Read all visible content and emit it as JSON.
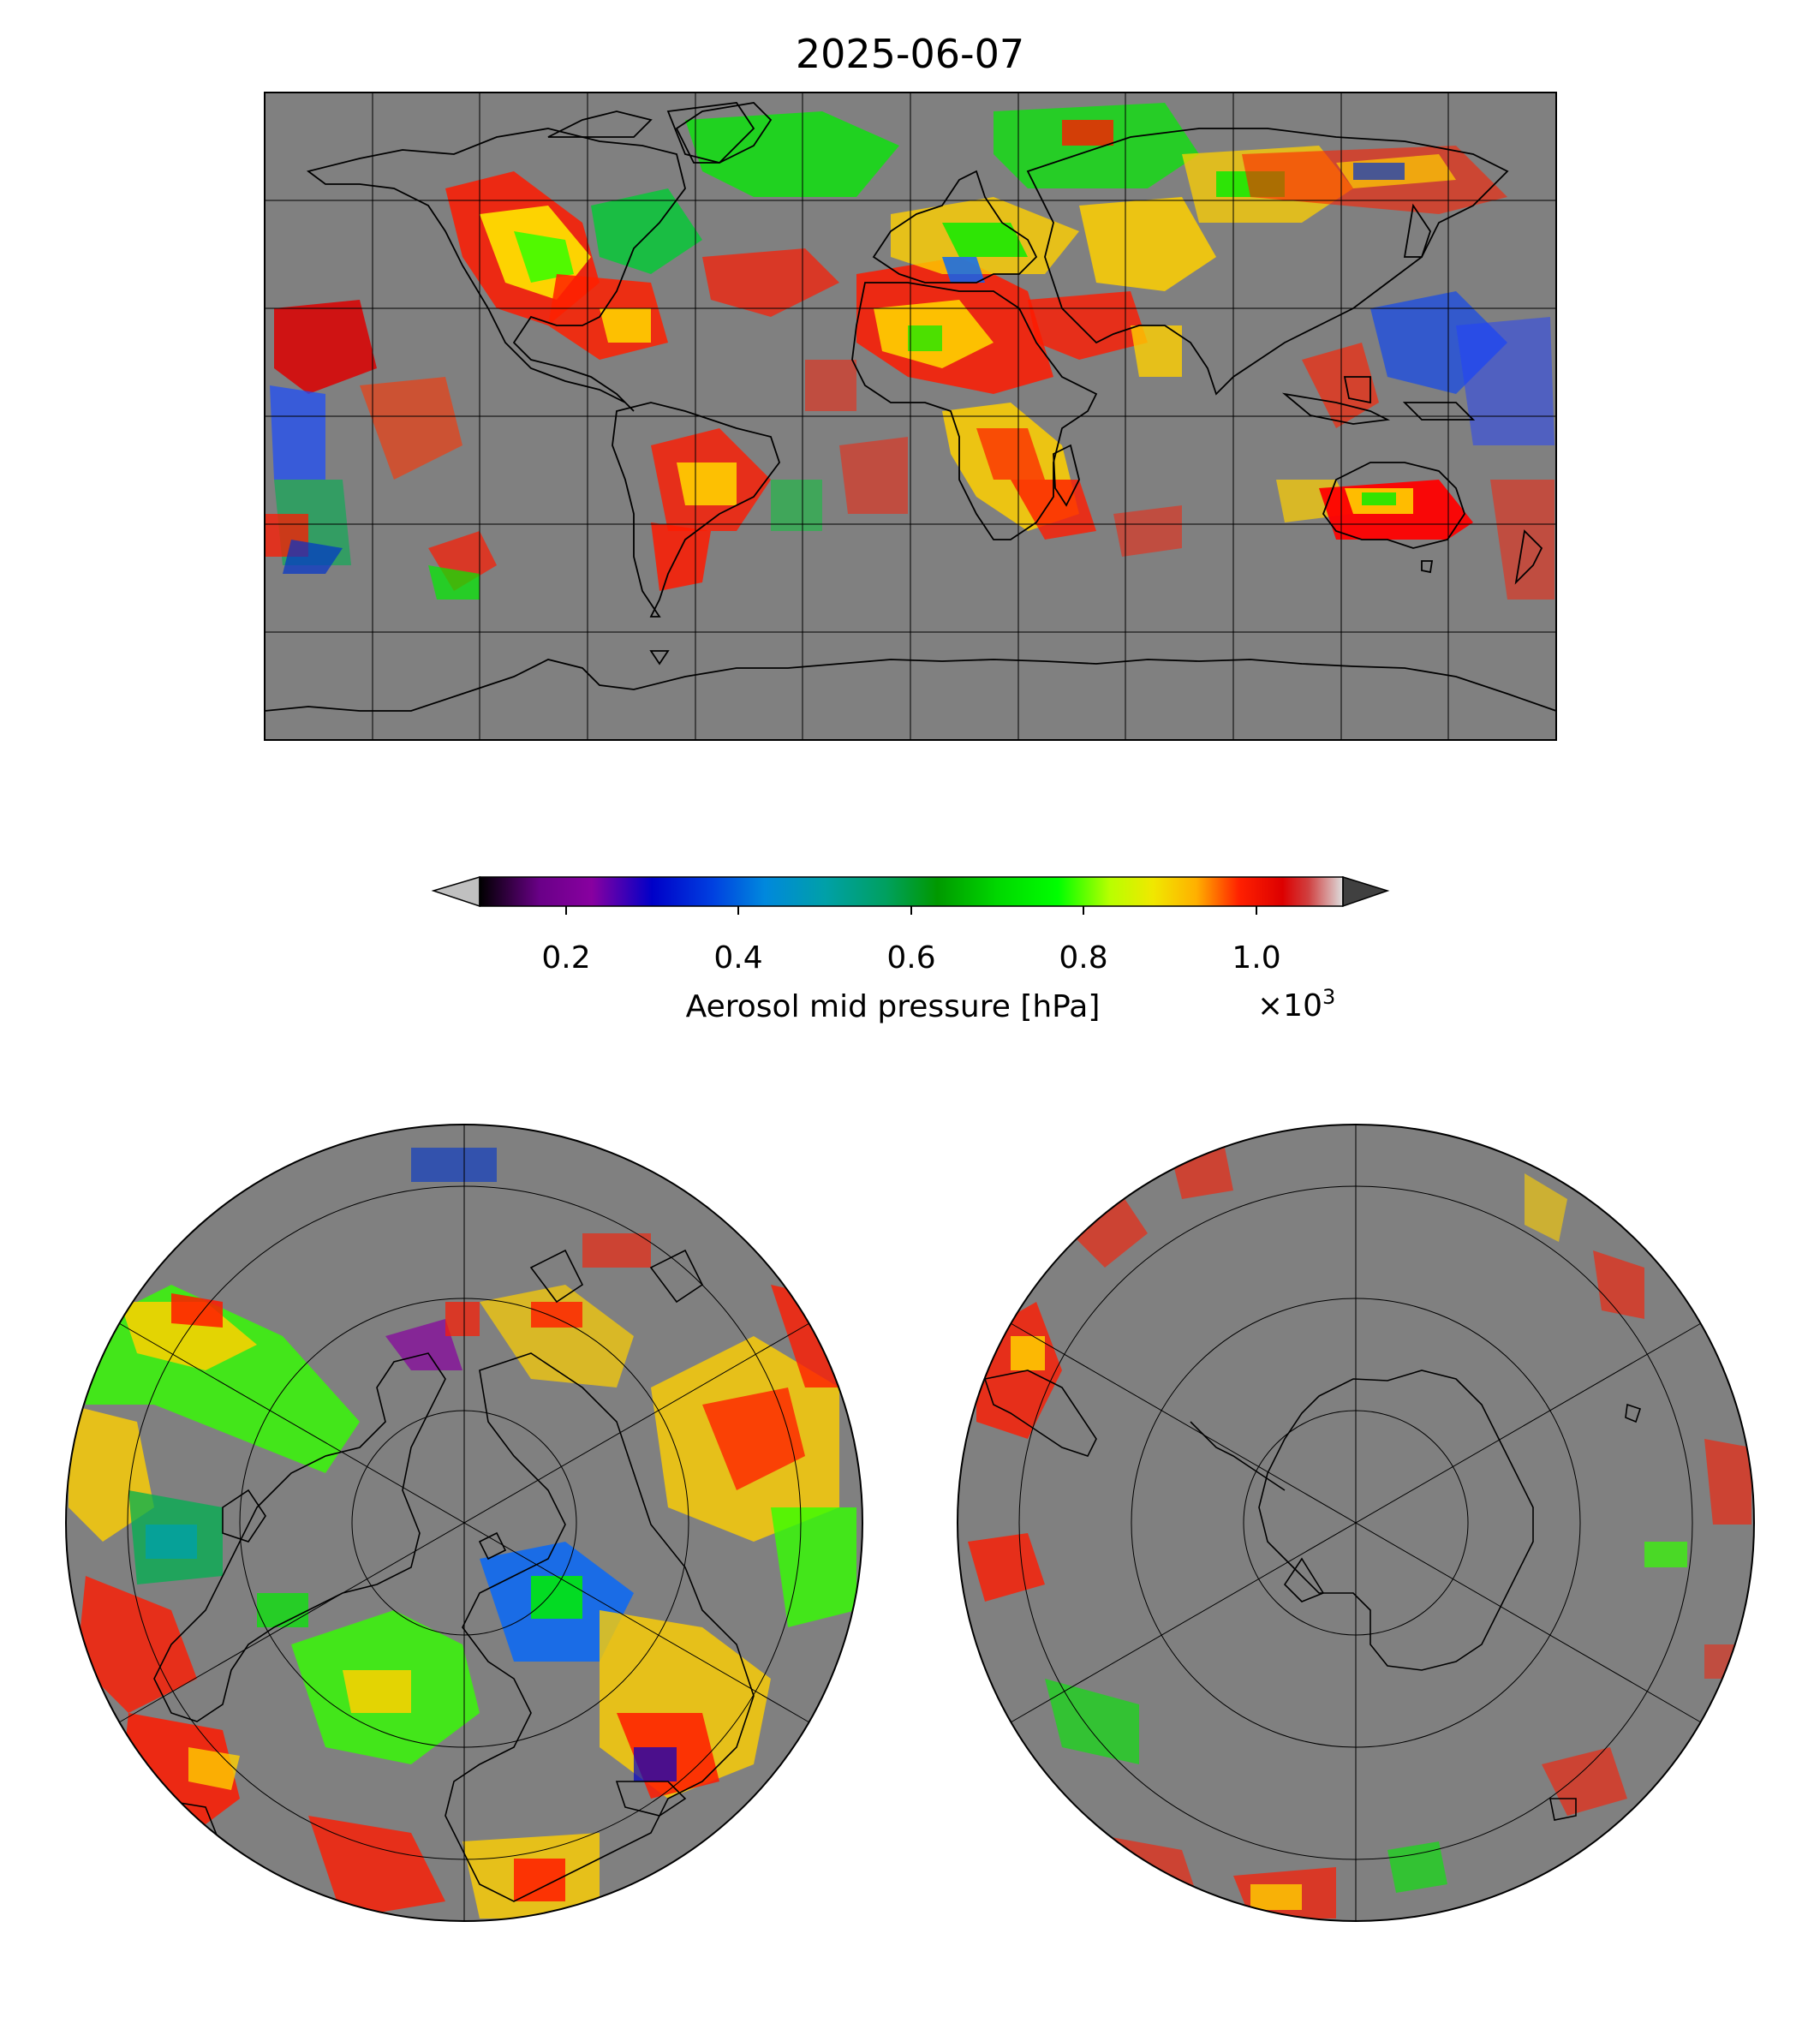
{
  "title": "2025-06-07",
  "colorbar": {
    "label": "Aerosol mid pressure [hPa]",
    "multiplier": "×10",
    "multiplier_exp": "3",
    "ticks": [
      "0.2",
      "0.4",
      "0.6",
      "0.8",
      "1.0"
    ],
    "tick_values": [
      0.2,
      0.4,
      0.6,
      0.8,
      1.0
    ],
    "range": [
      0.1,
      1.1
    ],
    "colormap": "nipy_spectral",
    "extend": "both",
    "under_color": "#c0c0c0",
    "over_color": "#404040"
  },
  "colors": {
    "no_data": "#808080",
    "coastline": "#000000",
    "gridline": "#000000"
  },
  "maps": [
    {
      "name": "global-map",
      "projection": "plate-carree",
      "grid": true
    },
    {
      "name": "north-polar-map",
      "projection": "north-polar-stereographic",
      "grid": true
    },
    {
      "name": "south-polar-map",
      "projection": "south-polar-stereographic",
      "grid": true
    }
  ]
}
